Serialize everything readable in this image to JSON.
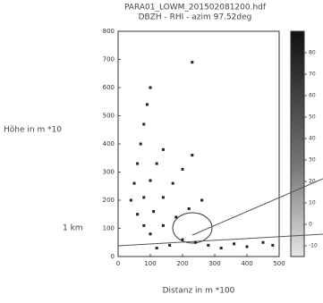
{
  "chart_data": {
    "type": "scatter",
    "title": "PARA01_LOWM_201502081200.hdf",
    "subtitle": "DBZH - RHI - azim 97.52deg",
    "y_label": "Höhe in m *10",
    "x_label": "Distanz in m *100",
    "annotation": "1 km",
    "xlim": [
      0,
      500
    ],
    "xticks": [
      0,
      100,
      200,
      300,
      400,
      500
    ],
    "ylim": [
      0,
      800
    ],
    "yticks": [
      0,
      100,
      200,
      300,
      400,
      500,
      600,
      700,
      800
    ],
    "clim": [
      -15,
      90
    ],
    "cticks": [
      -10,
      0,
      10,
      20,
      30,
      40,
      50,
      60,
      70,
      80
    ],
    "series": [
      {
        "color": "#222222",
        "x": [
          40,
          50,
          60,
          70,
          80,
          90,
          100,
          60,
          80,
          100,
          120,
          140,
          80,
          110,
          140,
          170,
          200,
          230,
          100,
          140,
          180,
          220,
          260,
          230,
          120,
          160,
          200,
          240,
          280,
          320,
          360,
          400,
          450,
          480
        ],
        "values": [
          200,
          260,
          330,
          400,
          470,
          540,
          600,
          150,
          210,
          270,
          330,
          380,
          110,
          160,
          210,
          260,
          310,
          360,
          80,
          110,
          140,
          170,
          200,
          690,
          30,
          40,
          60,
          50,
          40,
          30,
          45,
          35,
          50,
          40
        ]
      }
    ]
  }
}
